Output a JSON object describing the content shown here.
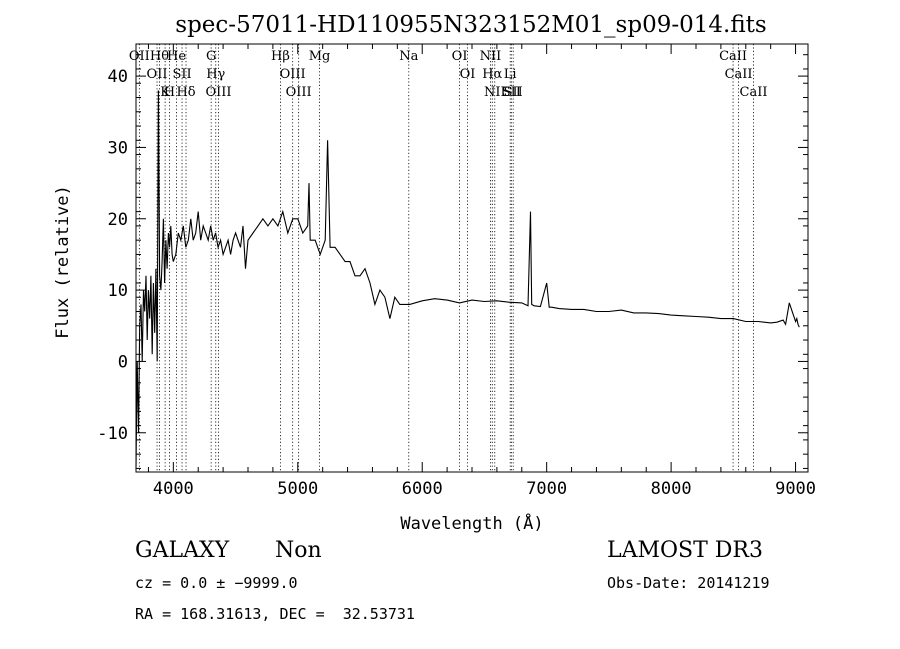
{
  "chart_data": {
    "type": "line",
    "title": "spec-57011-HD110955N323152M01_sp09-014.fits",
    "xlabel": "Wavelength (Å)",
    "ylabel": "Flux (relative)",
    "xlim": [
      3700,
      9100
    ],
    "ylim": [
      -15.5,
      44.5
    ],
    "xticks": [
      4000,
      5000,
      6000,
      7000,
      8000,
      9000
    ],
    "yticks": [
      -10,
      0,
      10,
      20,
      30,
      40
    ],
    "grid": false,
    "legend": "none",
    "series": [
      {
        "x": [
          3700,
          3710,
          3720,
          3730,
          3740,
          3750,
          3760,
          3770,
          3780,
          3790,
          3800,
          3810,
          3820,
          3830,
          3840,
          3850,
          3860,
          3870,
          3880,
          3890,
          3900,
          3910,
          3920,
          3930,
          3940,
          3950,
          3960,
          3970,
          3980,
          3990,
          4000,
          4020,
          4040,
          4060,
          4080,
          4100,
          4120,
          4140,
          4160,
          4180,
          4200,
          4220,
          4240,
          4260,
          4280,
          4300,
          4320,
          4340,
          4360,
          4380,
          4400,
          4420,
          4440,
          4460,
          4480,
          4500,
          4520,
          4540,
          4560,
          4580,
          4600,
          4640,
          4680,
          4720,
          4760,
          4800,
          4840,
          4880,
          4920,
          4960,
          5000,
          5040,
          5080,
          5090,
          5100,
          5140,
          5180,
          5220,
          5240,
          5260,
          5300,
          5340,
          5380,
          5420,
          5460,
          5500,
          5540,
          5580,
          5620,
          5660,
          5700,
          5740,
          5780,
          5820,
          5860,
          5900,
          6000,
          6100,
          6200,
          6300,
          6400,
          6500,
          6600,
          6700,
          6800,
          6850,
          6870,
          6880,
          6900,
          6950,
          7000,
          7020,
          7040,
          7100,
          7200,
          7300,
          7400,
          7500,
          7600,
          7700,
          7800,
          7900,
          8000,
          8100,
          8200,
          8300,
          8400,
          8500,
          8600,
          8700,
          8800,
          8850,
          8900,
          8920,
          8950,
          9000,
          9010,
          9020,
          9030
        ],
        "values": [
          -15,
          0,
          -10,
          5,
          8,
          0,
          10,
          7,
          12,
          3,
          10,
          6,
          12,
          1,
          11,
          4,
          13,
          0,
          38,
          12,
          10,
          14,
          20,
          11,
          17,
          13,
          18,
          16,
          19,
          15,
          14,
          15,
          18,
          17,
          19,
          16,
          17,
          20,
          17,
          18,
          21,
          17,
          19,
          18,
          17,
          19,
          17,
          18,
          16,
          17,
          15,
          16,
          17,
          15,
          17,
          18,
          17,
          16,
          19,
          13,
          17,
          18,
          19,
          20,
          19,
          20,
          19,
          21,
          18,
          20,
          20,
          18,
          19,
          25,
          17,
          17,
          15,
          17,
          31,
          16,
          16,
          15,
          14,
          14,
          12,
          12,
          13,
          11,
          8,
          10,
          9,
          6,
          9,
          8,
          8,
          8,
          8.5,
          8.8,
          8.6,
          8.2,
          8.6,
          8.4,
          8.5,
          8.3,
          8.2,
          7.8,
          21,
          8,
          7.8,
          7.7,
          11,
          7.6,
          7.6,
          7.4,
          7.3,
          7.3,
          7.0,
          7.0,
          7.2,
          6.8,
          6.8,
          6.7,
          6.5,
          6.4,
          6.3,
          6.2,
          6.0,
          6.0,
          5.6,
          5.6,
          5.4,
          5.5,
          5.8,
          5.2,
          8.2,
          5.6,
          6.0,
          5.2,
          4.8
        ]
      }
    ],
    "lines": [
      {
        "x": 3727,
        "label": "OII"
      },
      {
        "x": 3869,
        "label": "OII"
      },
      {
        "x": 3889,
        "label": "Hθ"
      },
      {
        "x": 3934,
        "label": "K"
      },
      {
        "x": 3969,
        "label": "H"
      },
      {
        "x": 4026,
        "label": "He"
      },
      {
        "x": 4070,
        "label": "SII"
      },
      {
        "x": 4102,
        "label": "Hδ"
      },
      {
        "x": 4304,
        "label": "G"
      },
      {
        "x": 4341,
        "label": "Hγ"
      },
      {
        "x": 4363,
        "label": "OIII"
      },
      {
        "x": 4861,
        "label": "Hβ"
      },
      {
        "x": 4959,
        "label": "OIII"
      },
      {
        "x": 5007,
        "label": "OIII"
      },
      {
        "x": 5175,
        "label": "Mg"
      },
      {
        "x": 5892,
        "label": "Na"
      },
      {
        "x": 6300,
        "label": "OI"
      },
      {
        "x": 6364,
        "label": "OI"
      },
      {
        "x": 6548,
        "label": "NII"
      },
      {
        "x": 6563,
        "label": "Hα"
      },
      {
        "x": 6583,
        "label": "NII"
      },
      {
        "x": 6707,
        "label": "Li"
      },
      {
        "x": 6716,
        "label": "SII"
      },
      {
        "x": 6731,
        "label": "SII"
      },
      {
        "x": 8498,
        "label": "CaII"
      },
      {
        "x": 8542,
        "label": "CaII"
      },
      {
        "x": 8662,
        "label": "CaII"
      }
    ]
  },
  "info": {
    "object_type": "GALAXY",
    "subclass": "Non",
    "survey": "LAMOST DR3",
    "cz": "cz = 0.0 ± −9999.0",
    "obs_date": "Obs-Date: 20141219",
    "radec": "RA = 168.31613, DEC =  32.53731"
  }
}
